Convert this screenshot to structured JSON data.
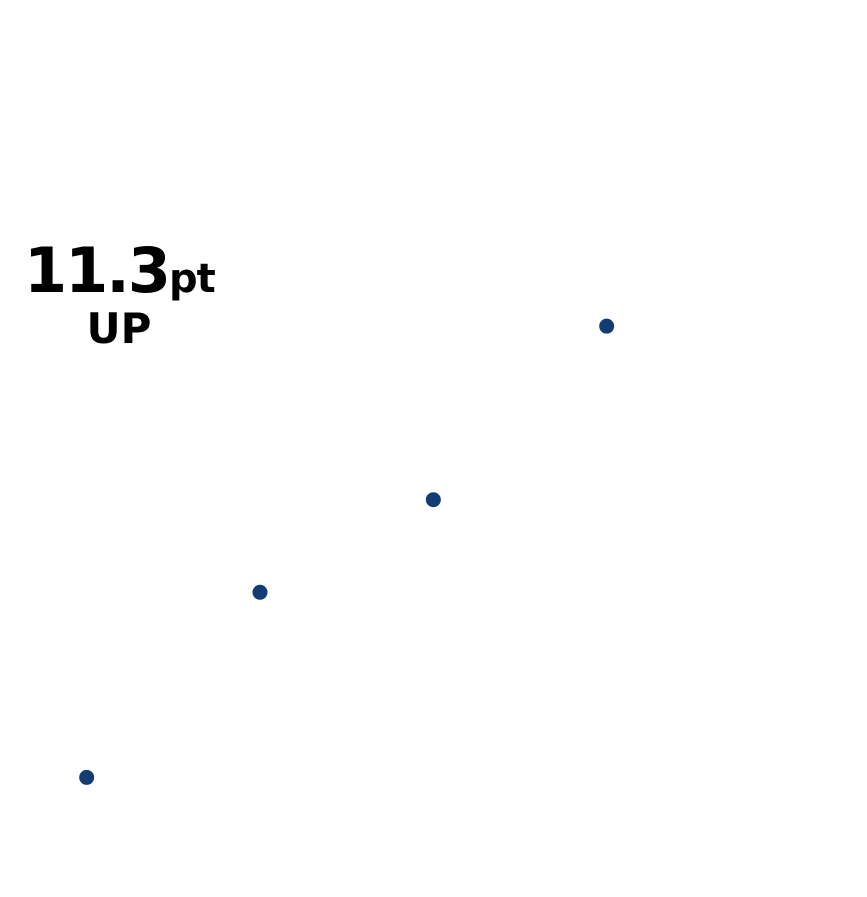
{
  "kpi": {
    "value": "11.3",
    "unit": "pt",
    "direction": "UP"
  },
  "colors": {
    "point": "#133c75",
    "text": "#000000"
  },
  "chart_data": {
    "type": "scatter",
    "title": "",
    "xlabel": "",
    "ylabel": "",
    "grid": false,
    "legend": "none",
    "x": [
      1,
      2,
      3,
      4
    ],
    "y": [
      1.6,
      4.8,
      6.4,
      9.4
    ],
    "xlim": [
      0.5,
      5
    ],
    "ylim": [
      0,
      14
    ]
  }
}
